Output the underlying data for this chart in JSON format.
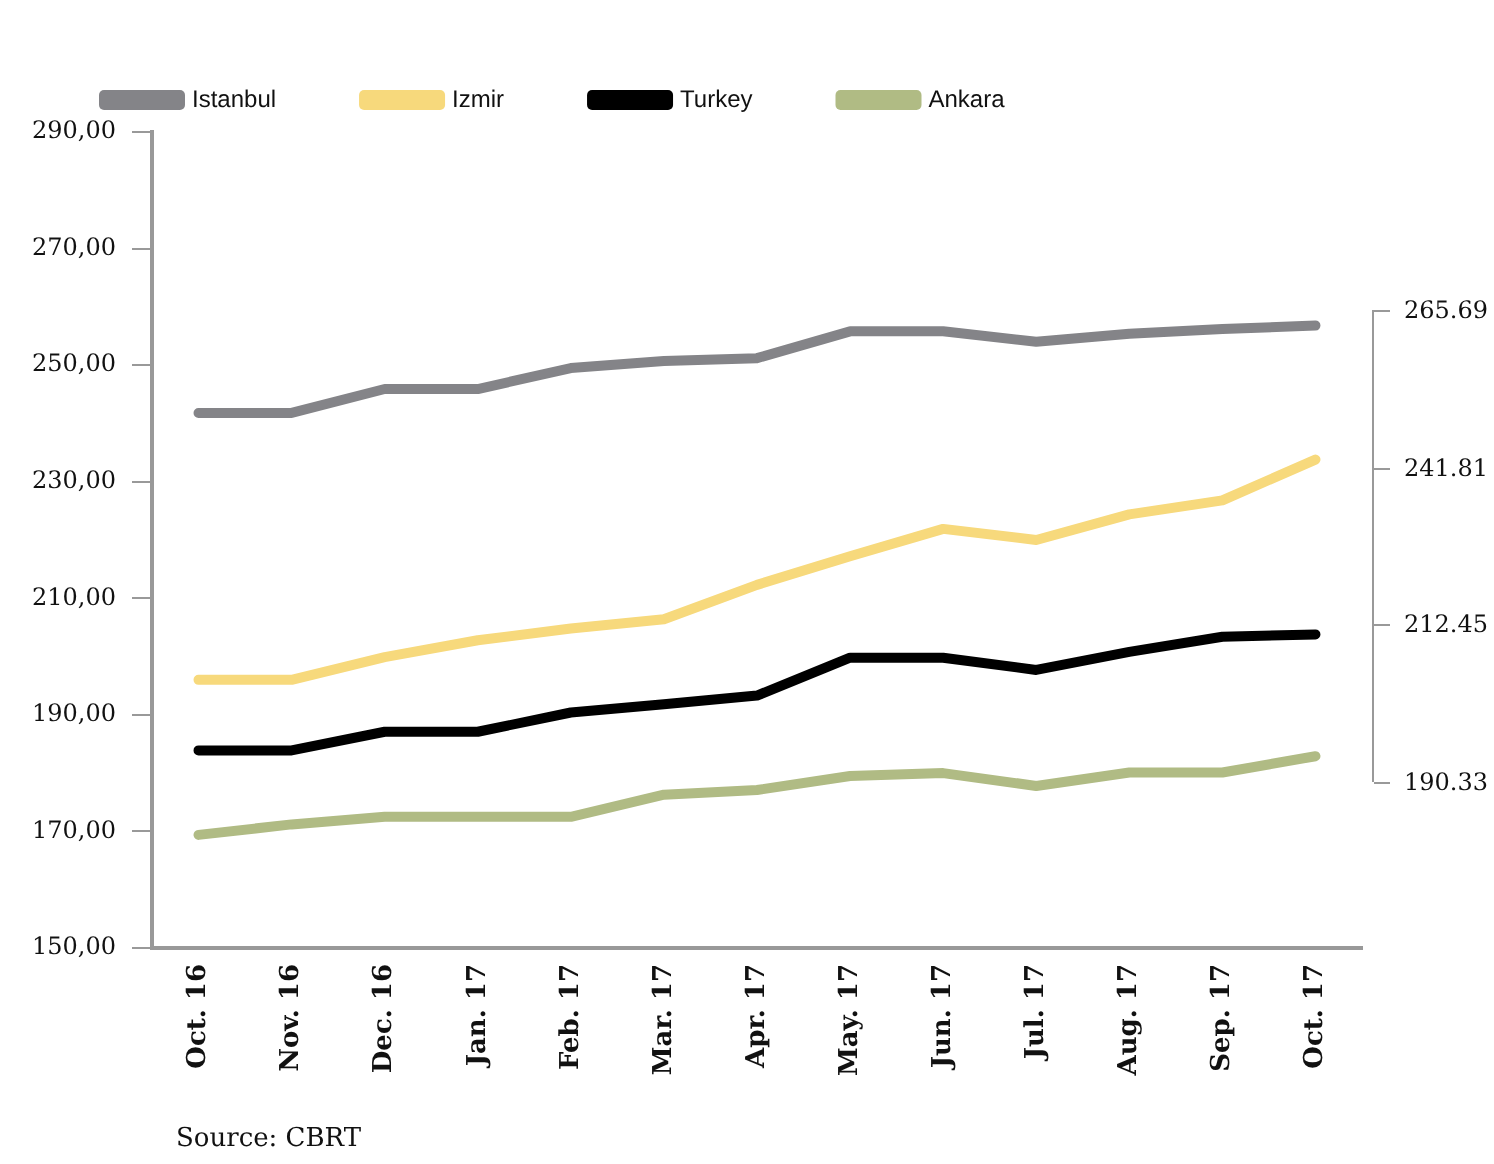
{
  "chart_data": {
    "type": "line",
    "categories": [
      "Oct. 16",
      "Nov. 16",
      "Dec. 16",
      "Jan. 17",
      "Feb. 17",
      "Mar. 17",
      "Apr. 17",
      "May. 17",
      "Jun. 17",
      "Jul. 17",
      "Aug. 17",
      "Sep. 17",
      "Oct. 17"
    ],
    "series": [
      {
        "name": "Istanbul",
        "color": "#848488",
        "values": [
          241.8,
          241.8,
          245.9,
          245.9,
          249.5,
          250.7,
          251.2,
          255.8,
          255.8,
          254.0,
          255.4,
          256.2,
          256.8
        ]
      },
      {
        "name": "Izmir",
        "color": "#f7d97c",
        "values": [
          196.0,
          196.0,
          199.9,
          202.8,
          204.8,
          206.4,
          212.3,
          217.2,
          221.9,
          220.0,
          224.4,
          226.8,
          233.8
        ]
      },
      {
        "name": "Turkey",
        "color": "#000000",
        "values": [
          183.9,
          183.9,
          187.1,
          187.1,
          190.4,
          191.8,
          193.3,
          199.8,
          199.8,
          197.7,
          200.8,
          203.4,
          203.8
        ]
      },
      {
        "name": "Ankara",
        "color": "#b0bb84",
        "values": [
          169.4,
          171.2,
          172.5,
          172.5,
          172.5,
          176.3,
          177.1,
          179.5,
          180.0,
          177.8,
          180.1,
          180.1,
          182.9
        ]
      }
    ],
    "ylim": [
      150,
      290
    ],
    "yticks": [
      {
        "value": 150,
        "label": "150,00"
      },
      {
        "value": 170,
        "label": "170,00"
      },
      {
        "value": 190,
        "label": "190,00"
      },
      {
        "value": 210,
        "label": "210,00"
      },
      {
        "value": 230,
        "label": "230,00"
      },
      {
        "value": 250,
        "label": "250,00"
      },
      {
        "value": 270,
        "label": "270,00"
      },
      {
        "value": 290,
        "label": "290,00"
      }
    ],
    "grid": false,
    "legend": "top left",
    "marker": "none",
    "line_style": "solid",
    "annotations": [
      "265.69",
      "241.81",
      "212.45",
      "190.33",
      "Source: CBRT"
    ]
  }
}
